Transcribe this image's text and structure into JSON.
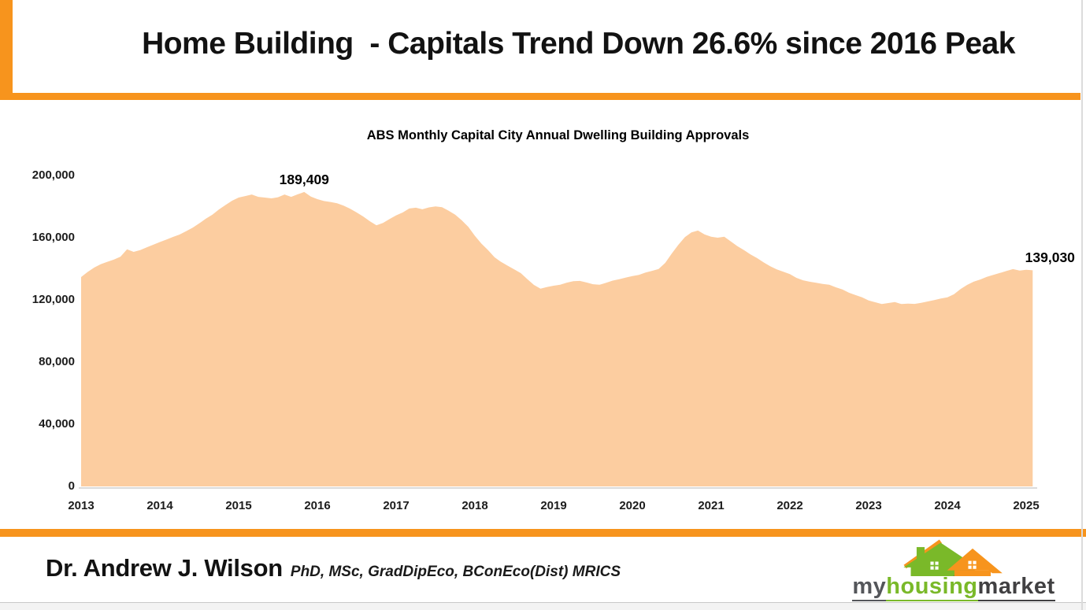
{
  "header": {
    "title": "Home Building  - Capitals Trend Down 26.6% since 2016 Peak"
  },
  "chart_data": {
    "type": "area",
    "title": "ABS Monthly Capital City Annual Dwelling Building Approvals",
    "series_name": "Annual dwelling building approvals (capital cities)",
    "x_start": 2013.0,
    "x_step_years": 0.083333,
    "xlim": [
      2013,
      2025.11
    ],
    "ylim": [
      0,
      200000
    ],
    "x_ticks": [
      2013,
      2014,
      2015,
      2016,
      2017,
      2018,
      2019,
      2020,
      2021,
      2022,
      2023,
      2024,
      2025
    ],
    "y_ticks": [
      0,
      40000,
      80000,
      120000,
      160000,
      200000
    ],
    "grid": false,
    "legend": "none",
    "fill_color": "#FCCDA0",
    "values": [
      134700,
      138000,
      140800,
      143000,
      144500,
      146000,
      147800,
      152500,
      150900,
      152000,
      153800,
      155500,
      157200,
      158800,
      160500,
      162000,
      164200,
      166500,
      169200,
      172200,
      174800,
      178200,
      181000,
      183800,
      185800,
      186800,
      187800,
      186300,
      185800,
      185300,
      186000,
      187800,
      186300,
      187900,
      189409,
      186500,
      184800,
      183600,
      183000,
      182200,
      180600,
      178600,
      176200,
      173600,
      170600,
      168000,
      169500,
      172000,
      174400,
      176200,
      178800,
      179300,
      178300,
      179500,
      180100,
      179600,
      177300,
      174800,
      171200,
      167000,
      161200,
      156200,
      152000,
      147400,
      144400,
      142000,
      139600,
      137200,
      133300,
      129600,
      127200,
      128300,
      129100,
      129700,
      131100,
      132000,
      132200,
      131200,
      130100,
      129700,
      131000,
      132400,
      133300,
      134400,
      135300,
      136100,
      137600,
      138700,
      139900,
      143800,
      149800,
      155400,
      160400,
      163400,
      164600,
      162100,
      160600,
      160000,
      160600,
      157600,
      154600,
      152000,
      149200,
      146900,
      144100,
      141600,
      139600,
      138100,
      136600,
      134200,
      132600,
      131700,
      131000,
      130300,
      129700,
      128100,
      126700,
      124600,
      123100,
      121600,
      119600,
      118500,
      117300,
      118000,
      118600,
      117300,
      117600,
      117400,
      118100,
      119000,
      119900,
      120900,
      121600,
      123600,
      127000,
      129600,
      131700,
      133100,
      134800,
      136100,
      137300,
      138600,
      139800,
      138900,
      139400,
      139030
    ],
    "annotations": [
      {
        "name": "peak-value-label",
        "label": "189,409",
        "x": 2015.833,
        "value": 189409,
        "dx": 0
      },
      {
        "name": "latest-value-label",
        "label": "139,030",
        "x": 2025.083,
        "value": 139030,
        "dx": 22
      }
    ]
  },
  "footer": {
    "author": "Dr. Andrew J. Wilson",
    "credentials": "PhD, MSc, GradDipEco, BConEco(Dist) MRICS",
    "logo": {
      "my": "my",
      "housing": "housing",
      "market": "market"
    }
  },
  "colors": {
    "accent_orange": "#F7941D",
    "area_fill": "#FCCDA0",
    "logo_green": "#7AB929",
    "logo_dark_gray": "#54565A",
    "logo_black": "#414042",
    "axis_line": "#DBDBDB"
  }
}
